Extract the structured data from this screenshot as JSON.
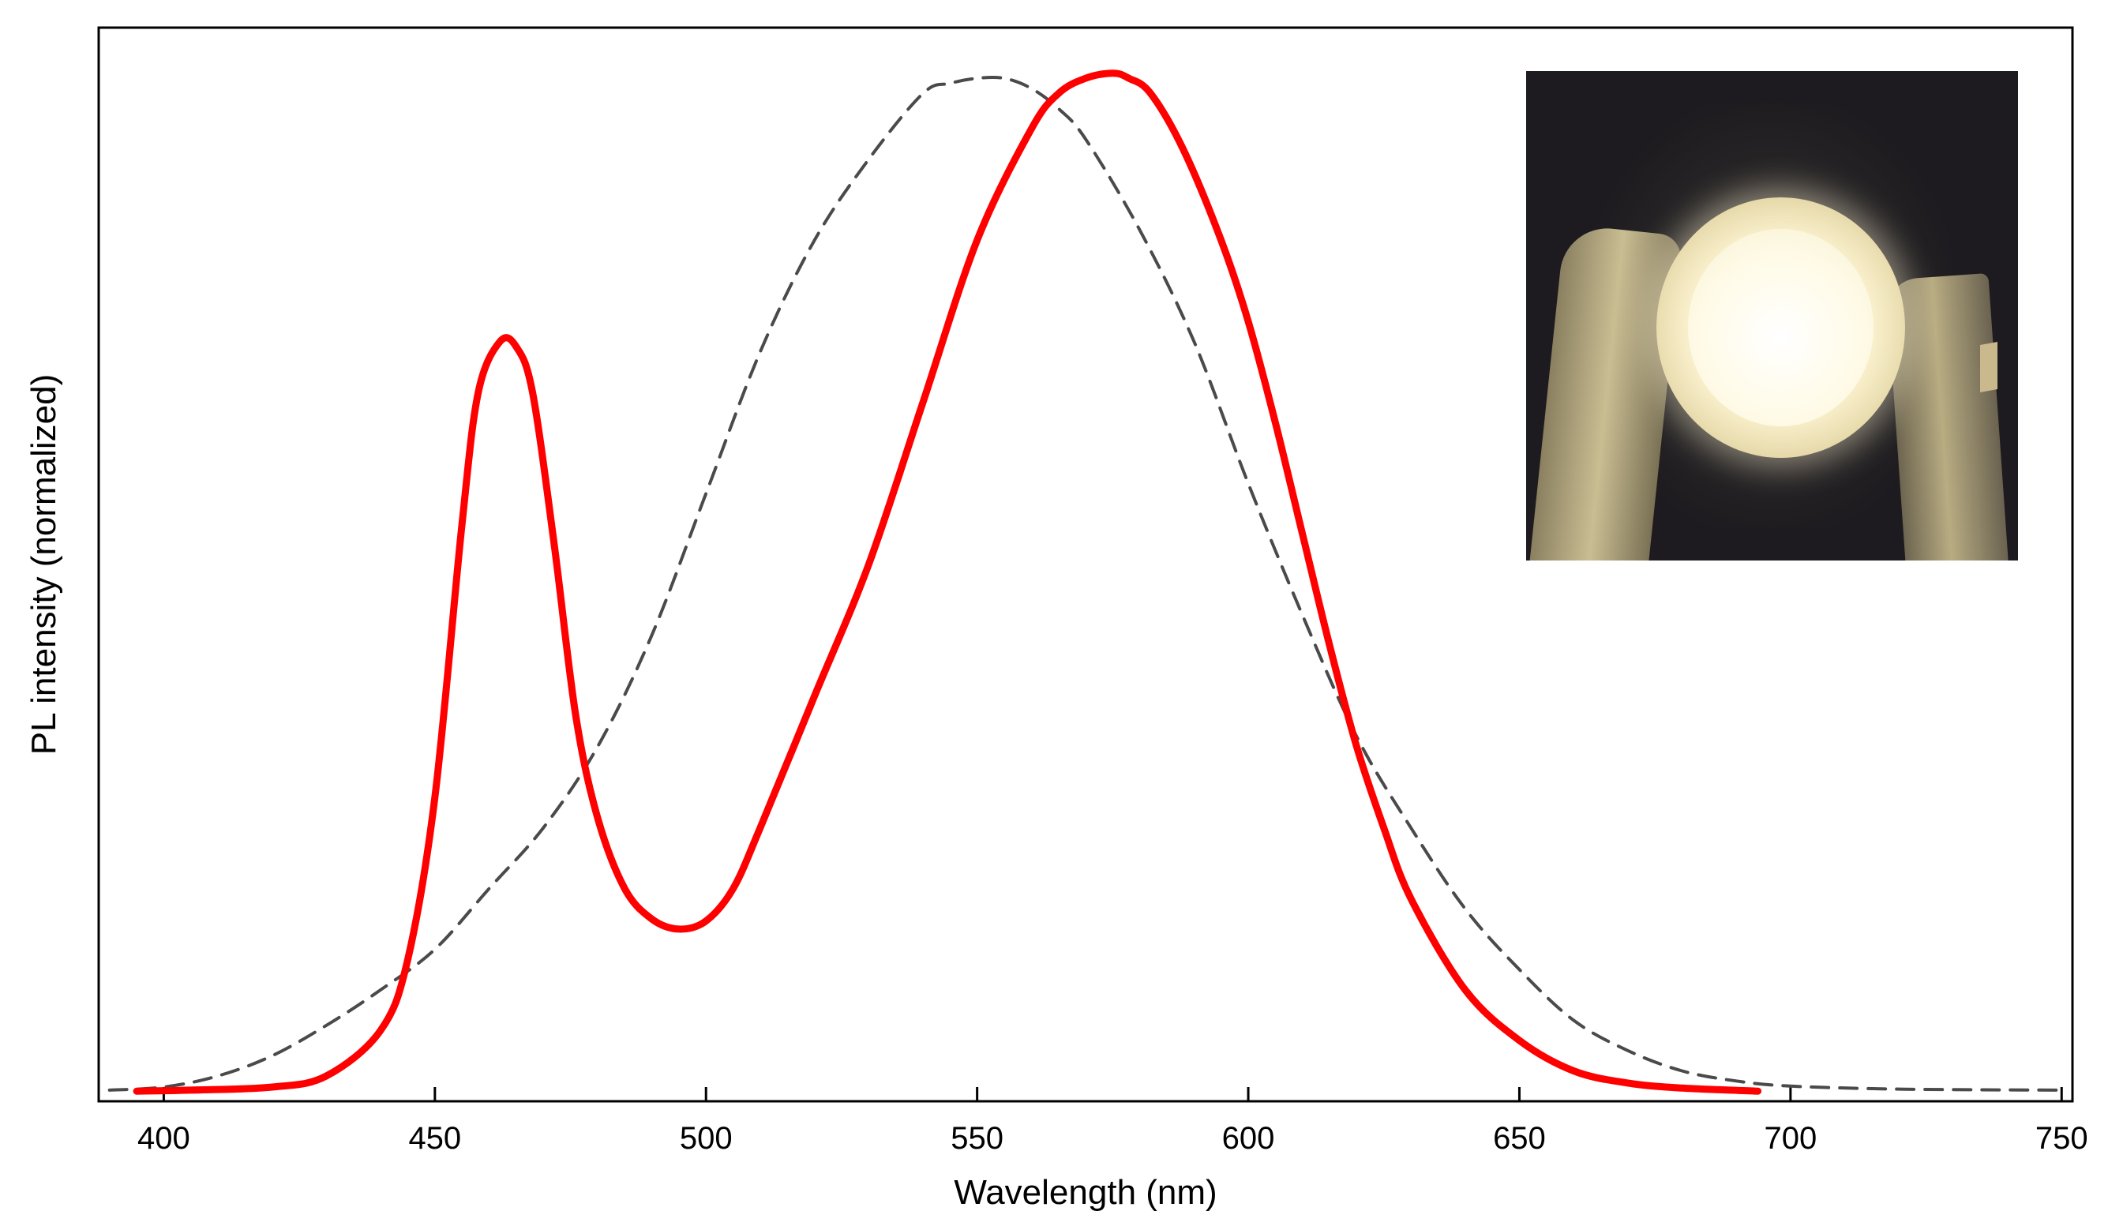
{
  "chart_data": {
    "type": "line",
    "xlabel": "Wavelength (nm)",
    "ylabel": "PL intensity (normalized)",
    "xlim": [
      388,
      752
    ],
    "ylim": [
      -0.01,
      1.05
    ],
    "x_ticks": [
      400,
      450,
      500,
      550,
      600,
      650,
      700,
      750
    ],
    "grid": false,
    "legend": "none",
    "inset": "photo-of-glowing-white-led",
    "series": [
      {
        "color": "#ff0000",
        "style": "solid",
        "x": [
          395,
          405,
          420,
          430,
          440,
          445,
          450,
          455,
          458,
          462,
          465,
          468,
          472,
          476,
          480,
          485,
          490,
          495,
          500,
          505,
          510,
          520,
          530,
          540,
          550,
          560,
          565,
          570,
          575,
          578,
          582,
          588,
          595,
          600,
          605,
          610,
          615,
          620,
          625,
          630,
          640,
          650,
          660,
          670,
          680,
          694
        ],
        "y": [
          0.0,
          0.001,
          0.004,
          0.015,
          0.06,
          0.13,
          0.29,
          0.56,
          0.69,
          0.74,
          0.735,
          0.69,
          0.54,
          0.37,
          0.27,
          0.2,
          0.17,
          0.16,
          0.168,
          0.2,
          0.26,
          0.39,
          0.52,
          0.68,
          0.84,
          0.95,
          0.985,
          1.0,
          1.005,
          1.0,
          0.985,
          0.93,
          0.84,
          0.76,
          0.66,
          0.55,
          0.44,
          0.34,
          0.26,
          0.19,
          0.1,
          0.05,
          0.02,
          0.008,
          0.003,
          0.0
        ]
      },
      {
        "color": "#4a4a4a",
        "style": "dashed",
        "x": [
          390,
          400,
          410,
          420,
          430,
          440,
          450,
          460,
          470,
          480,
          490,
          500,
          510,
          520,
          530,
          540,
          545,
          550,
          555,
          560,
          565,
          570,
          580,
          590,
          600,
          610,
          620,
          630,
          640,
          650,
          660,
          670,
          680,
          690,
          700,
          720,
          750
        ],
        "y": [
          0.001,
          0.004,
          0.015,
          0.035,
          0.065,
          0.1,
          0.14,
          0.2,
          0.26,
          0.34,
          0.45,
          0.59,
          0.73,
          0.84,
          0.92,
          0.985,
          0.995,
          1.0,
          1.0,
          0.99,
          0.97,
          0.94,
          0.85,
          0.74,
          0.6,
          0.47,
          0.35,
          0.26,
          0.18,
          0.12,
          0.07,
          0.04,
          0.02,
          0.01,
          0.005,
          0.002,
          0.001
        ]
      }
    ]
  }
}
